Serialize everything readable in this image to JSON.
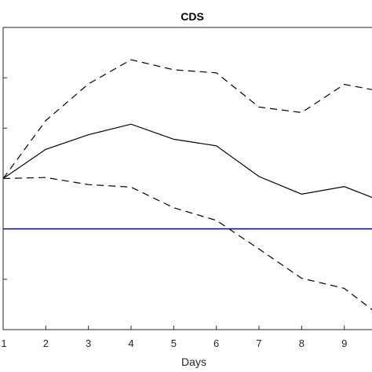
{
  "chart_data": {
    "type": "line",
    "title": "CDS",
    "xlabel": "Days",
    "ylabel": "",
    "x": [
      1,
      2,
      3,
      4,
      5,
      6,
      7,
      8,
      9,
      10
    ],
    "xticks": [
      1,
      2,
      3,
      4,
      5,
      6,
      7,
      8,
      9
    ],
    "xlim": [
      1,
      9.65
    ],
    "ylim": [
      -3,
      3
    ],
    "yticks": [
      -3,
      -2,
      -1,
      0,
      1,
      2,
      3
    ],
    "grid": false,
    "series": [
      {
        "values": [
          0,
          0.58,
          0.87,
          1.08,
          0.78,
          0.65,
          0.04,
          -0.31,
          -0.16,
          -0.49
        ],
        "color": "#000000",
        "style": "solid"
      },
      {
        "values": [
          0,
          1.15,
          1.88,
          2.36,
          2.16,
          2.1,
          1.42,
          1.31,
          1.87,
          1.71
        ],
        "color": "#000000",
        "style": "dashed"
      },
      {
        "values": [
          0,
          0.02,
          -0.12,
          -0.17,
          -0.58,
          -0.83,
          -1.4,
          -1.98,
          -2.18,
          -2.83
        ],
        "color": "#000000",
        "style": "dashed"
      }
    ],
    "reference_line": {
      "y": -1,
      "color": "#0000cc"
    }
  }
}
